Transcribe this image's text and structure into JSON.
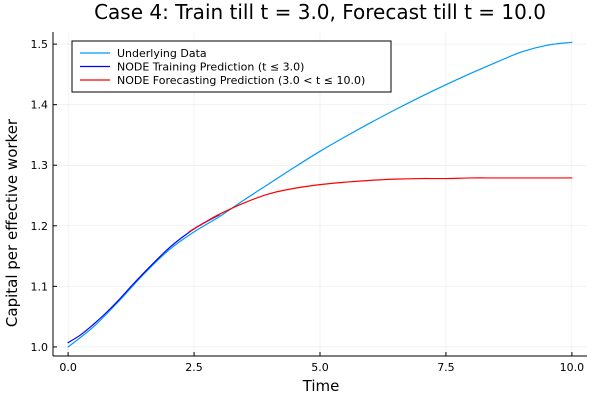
{
  "chart_data": {
    "type": "line",
    "title": "Case 4: Train till t = 3.0, Forecast till t = 10.0",
    "xlabel": "Time",
    "ylabel": "Capital per effective worker",
    "xlim": [
      -0.3,
      10.3
    ],
    "ylim": [
      0.985,
      1.52
    ],
    "xticks": [
      0.0,
      2.5,
      5.0,
      7.5,
      10.0
    ],
    "xtick_labels": [
      "0.0",
      "2.5",
      "5.0",
      "7.5",
      "10.0"
    ],
    "yticks": [
      1.0,
      1.1,
      1.2,
      1.3,
      1.4,
      1.5
    ],
    "ytick_labels": [
      "1.0",
      "1.1",
      "1.2",
      "1.3",
      "1.4",
      "1.5"
    ],
    "grid": true,
    "legend_position": "top-left",
    "series": [
      {
        "name": "Underlying Data",
        "color": "#009AFA",
        "x": [
          0,
          0.5,
          1.0,
          1.5,
          2.0,
          2.5,
          3.0,
          3.5,
          4.0,
          4.5,
          5.0,
          5.5,
          6.0,
          6.5,
          7.0,
          7.5,
          8.0,
          8.5,
          9.0,
          9.5,
          10.0
        ],
        "y": [
          1.0,
          1.033,
          1.075,
          1.12,
          1.16,
          1.19,
          1.215,
          1.243,
          1.27,
          1.297,
          1.323,
          1.347,
          1.37,
          1.392,
          1.413,
          1.433,
          1.452,
          1.47,
          1.487,
          1.498,
          1.503
        ]
      },
      {
        "name": "NODE Training Prediction (t ≤ 3.0)",
        "color": "#0000FF",
        "x": [
          0,
          0.25,
          0.5,
          0.75,
          1.0,
          1.25,
          1.5,
          1.75,
          2.0,
          2.25,
          2.5,
          2.75,
          3.0
        ],
        "y": [
          1.007,
          1.02,
          1.037,
          1.056,
          1.077,
          1.1,
          1.122,
          1.143,
          1.163,
          1.18,
          1.195,
          1.207,
          1.218
        ]
      },
      {
        "name": "NODE Forecasting Prediction (3.0 < t ≤ 10.0)",
        "color": "#FF0000",
        "x": [
          2.4,
          2.7,
          3.0,
          3.5,
          4.0,
          4.5,
          5.0,
          5.5,
          6.0,
          6.5,
          7.0,
          7.5,
          8.0,
          8.5,
          9.0,
          9.5,
          10.0
        ],
        "y": [
          1.19,
          1.205,
          1.219,
          1.238,
          1.253,
          1.262,
          1.268,
          1.272,
          1.275,
          1.277,
          1.278,
          1.278,
          1.279,
          1.279,
          1.279,
          1.279,
          1.279
        ]
      }
    ]
  }
}
